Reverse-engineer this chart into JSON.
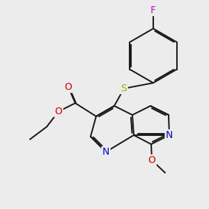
{
  "background_color": "#ececec",
  "bond_color": "#1a1a1a",
  "atom_colors": {
    "N": "#0000ee",
    "O": "#ee0000",
    "S": "#aaaa00",
    "F": "#dd00dd",
    "C": "#1a1a1a"
  },
  "font_size": 10,
  "fig_size": [
    3.0,
    3.0
  ],
  "dpi": 100
}
